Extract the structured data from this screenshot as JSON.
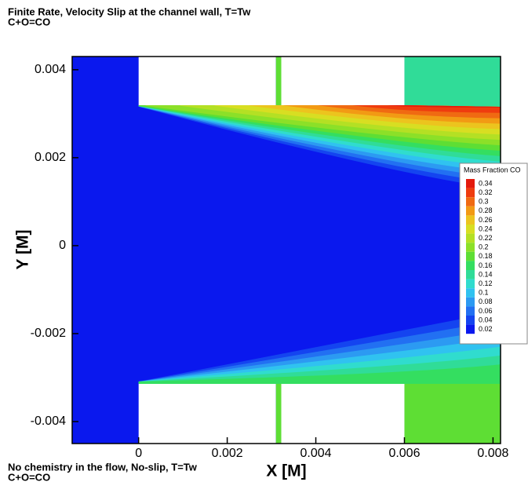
{
  "chart_data": {
    "type": "contour",
    "title": "Finite Rate, Velocity Slip at the channel wall, T=Tw",
    "subtitle": "C+O=CO",
    "annotation": "No chemistry in the flow, No-slip, T=Tw",
    "annotation_subtitle": "C+O=CO",
    "x_label": "X [M]",
    "y_label": "Y [M]",
    "xlim": [
      -0.0015,
      0.00817
    ],
    "ylim": [
      -0.0045,
      0.0043
    ],
    "xticks": [
      0,
      0.002,
      0.004,
      0.006,
      0.008
    ],
    "yticks": [
      -0.004,
      -0.002,
      0,
      0.002,
      0.004
    ],
    "legend_title": "Mass Fraction CO",
    "legend": "right",
    "levels": [
      0.34,
      0.32,
      0.3,
      0.28,
      0.26,
      0.24,
      0.22,
      0.2,
      0.18,
      0.16,
      0.14,
      0.12,
      0.1,
      0.08,
      0.06,
      0.04,
      0.02
    ],
    "colors": [
      "#e41a0c",
      "#ef3c0e",
      "#f06a12",
      "#f29a14",
      "#ecc41e",
      "#d8de22",
      "#b4e024",
      "#8ce028",
      "#5ede34",
      "#34de60",
      "#30dc98",
      "#30dcce",
      "#30c2f0",
      "#2c9af2",
      "#2270f2",
      "#1444f0",
      "#0a18ee"
    ]
  }
}
